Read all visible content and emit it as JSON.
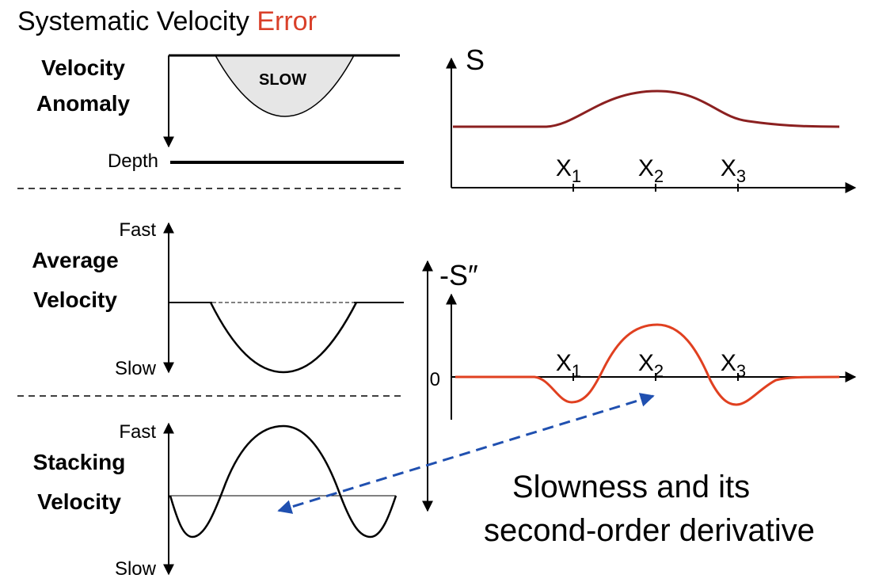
{
  "title": {
    "main": "Systematic Velocity",
    "highlight": "Error"
  },
  "left_panels": [
    {
      "label": [
        "Velocity",
        "Anomaly"
      ],
      "region": "SLOW",
      "axis": "Depth"
    },
    {
      "label": [
        "Average",
        "Velocity"
      ],
      "top": "Fast",
      "bottom": "Slow"
    },
    {
      "label": [
        "Stacking",
        "Velocity"
      ],
      "top": "Fast",
      "bottom": "Slow"
    }
  ],
  "right_panels": [
    {
      "y_label": "S",
      "x_labels": [
        {
          "base": "X",
          "sub": "1"
        },
        {
          "base": "X",
          "sub": "2"
        },
        {
          "base": "X",
          "sub": "3"
        }
      ]
    },
    {
      "y_label": "-S″",
      "zero": "0",
      "x_labels": [
        {
          "base": "X",
          "sub": "1"
        },
        {
          "base": "X",
          "sub": "2"
        },
        {
          "base": "X",
          "sub": "3"
        }
      ]
    }
  ],
  "caption": [
    "Slowness and its",
    "second-order derivative"
  ]
}
